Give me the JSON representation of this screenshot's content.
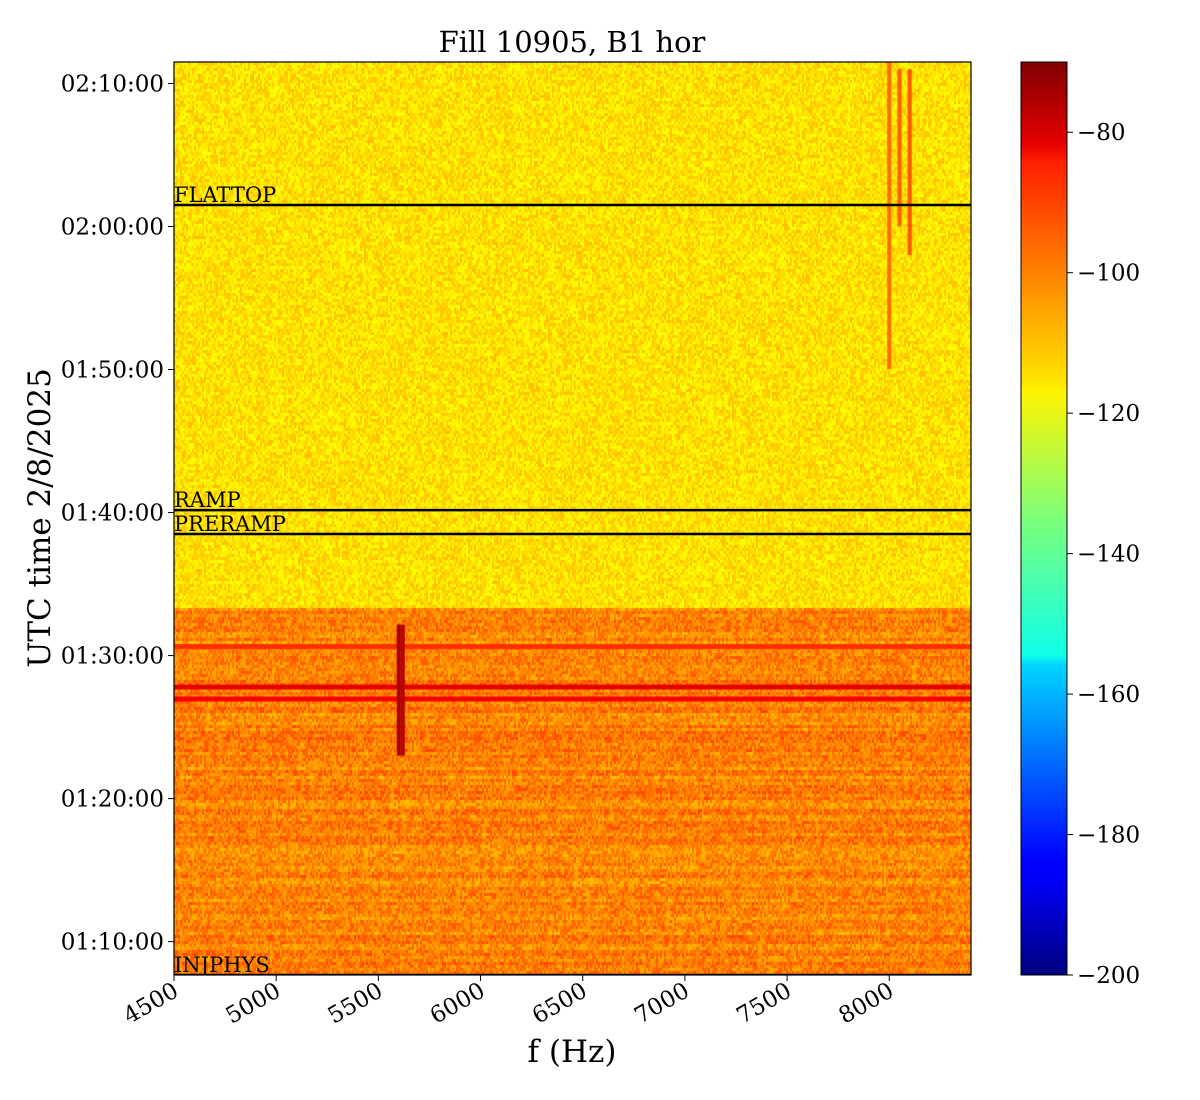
{
  "chart_data": {
    "type": "heatmap",
    "title": "Fill 10905, B1 hor",
    "xlabel": "f (Hz)",
    "ylabel": "UTC time 2/8/2025",
    "xlim": [
      4500,
      8400
    ],
    "ylim": [
      "01:07:40",
      "02:11:30"
    ],
    "x_ticks": [
      4500,
      5000,
      5500,
      6000,
      6500,
      7000,
      7500,
      8000
    ],
    "y_ticks": [
      "01:10:00",
      "01:20:00",
      "01:30:00",
      "01:40:00",
      "01:50:00",
      "02:00:00",
      "02:10:00"
    ],
    "colorbar": {
      "range": [
        -200,
        -70
      ],
      "ticks": [
        -200,
        -180,
        -160,
        -140,
        -120,
        -100,
        -80
      ],
      "colormap": "jet"
    },
    "background_level": -115,
    "phase_markers": [
      {
        "label": "INJPHYS",
        "time": "01:07:40"
      },
      {
        "label": "PRERAMP",
        "time": "01:38:30"
      },
      {
        "label": "RAMP",
        "time": "01:40:10"
      },
      {
        "label": "FLATTOP",
        "time": "02:01:30"
      }
    ],
    "features": [
      {
        "kind": "noisy_band",
        "time_start": "01:07:40",
        "time_end": "01:33:30",
        "level": -103
      },
      {
        "kind": "strong_horizontal_line",
        "time": "01:27:00",
        "level": -85
      },
      {
        "kind": "strong_horizontal_line",
        "time": "01:27:50",
        "level": -83
      },
      {
        "kind": "strong_horizontal_line",
        "time": "01:30:40",
        "level": -92
      },
      {
        "kind": "vertical_line",
        "freq": 5600,
        "time_start": "01:23:00",
        "time_end": "01:32:10",
        "level": -75
      },
      {
        "kind": "vertical_line",
        "freq": 5620,
        "time_start": "01:23:00",
        "time_end": "01:32:10",
        "level": -78
      },
      {
        "kind": "vertical_line",
        "freq": 8000,
        "time_start": "01:50:00",
        "time_end": "02:11:30",
        "level": -100
      },
      {
        "kind": "vertical_line",
        "freq": 8050,
        "time_start": "02:00:00",
        "time_end": "02:11:00",
        "level": -98
      },
      {
        "kind": "vertical_line",
        "freq": 8100,
        "time_start": "01:58:00",
        "time_end": "02:11:00",
        "level": -97
      }
    ]
  }
}
